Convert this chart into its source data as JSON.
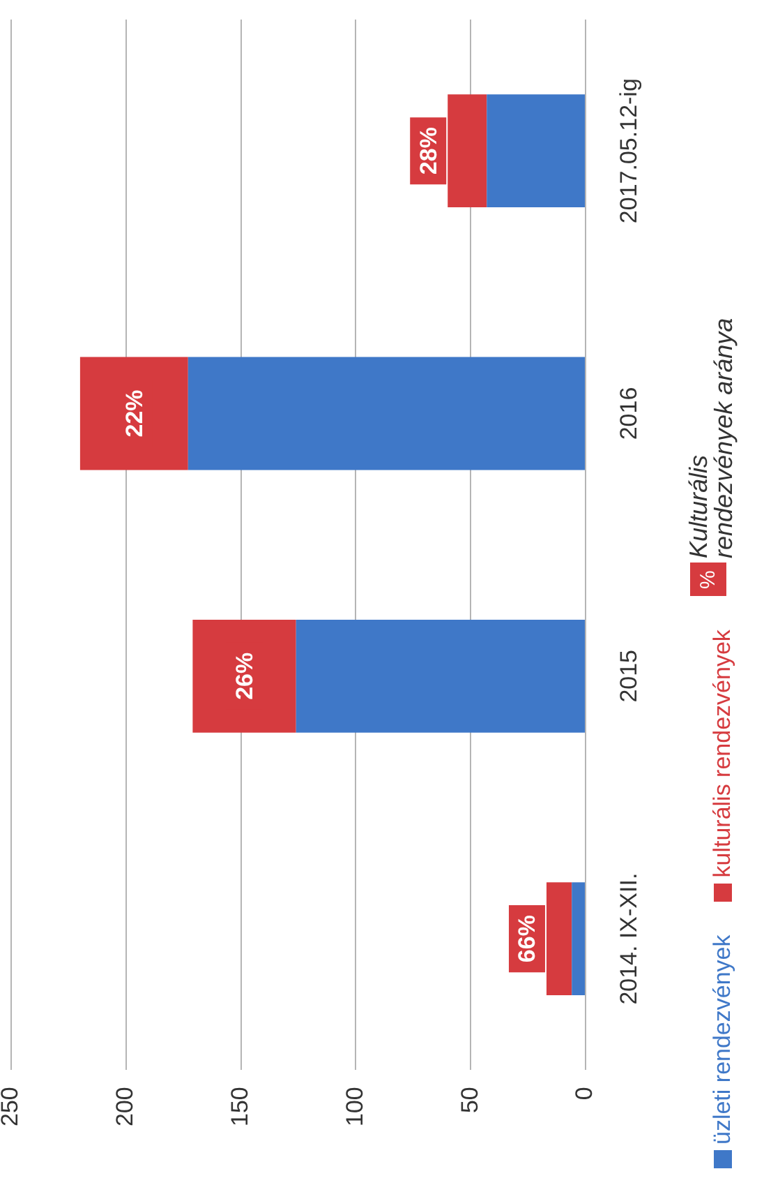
{
  "chart_data": {
    "type": "bar",
    "stacked": true,
    "orientation": "horizontal",
    "categories": [
      "2017.05.12-ig",
      "2016",
      "2015",
      "2014. IX-XII."
    ],
    "series": [
      {
        "name": "üzleti rendezvények",
        "color": "#3f78c8",
        "values": [
          43,
          173,
          126,
          6
        ]
      },
      {
        "name": "kulturális rendezvények",
        "color": "#d63b3f",
        "values": [
          17,
          47,
          45,
          11
        ]
      }
    ],
    "xlim": [
      250,
      0
    ],
    "xticks": [
      0,
      50,
      100,
      150,
      200,
      250
    ],
    "grid": "x",
    "legend": "right",
    "annotations": [
      "28%",
      "22%",
      "26%",
      "66%",
      "%",
      "Kulturális rendezvények aránya"
    ]
  }
}
